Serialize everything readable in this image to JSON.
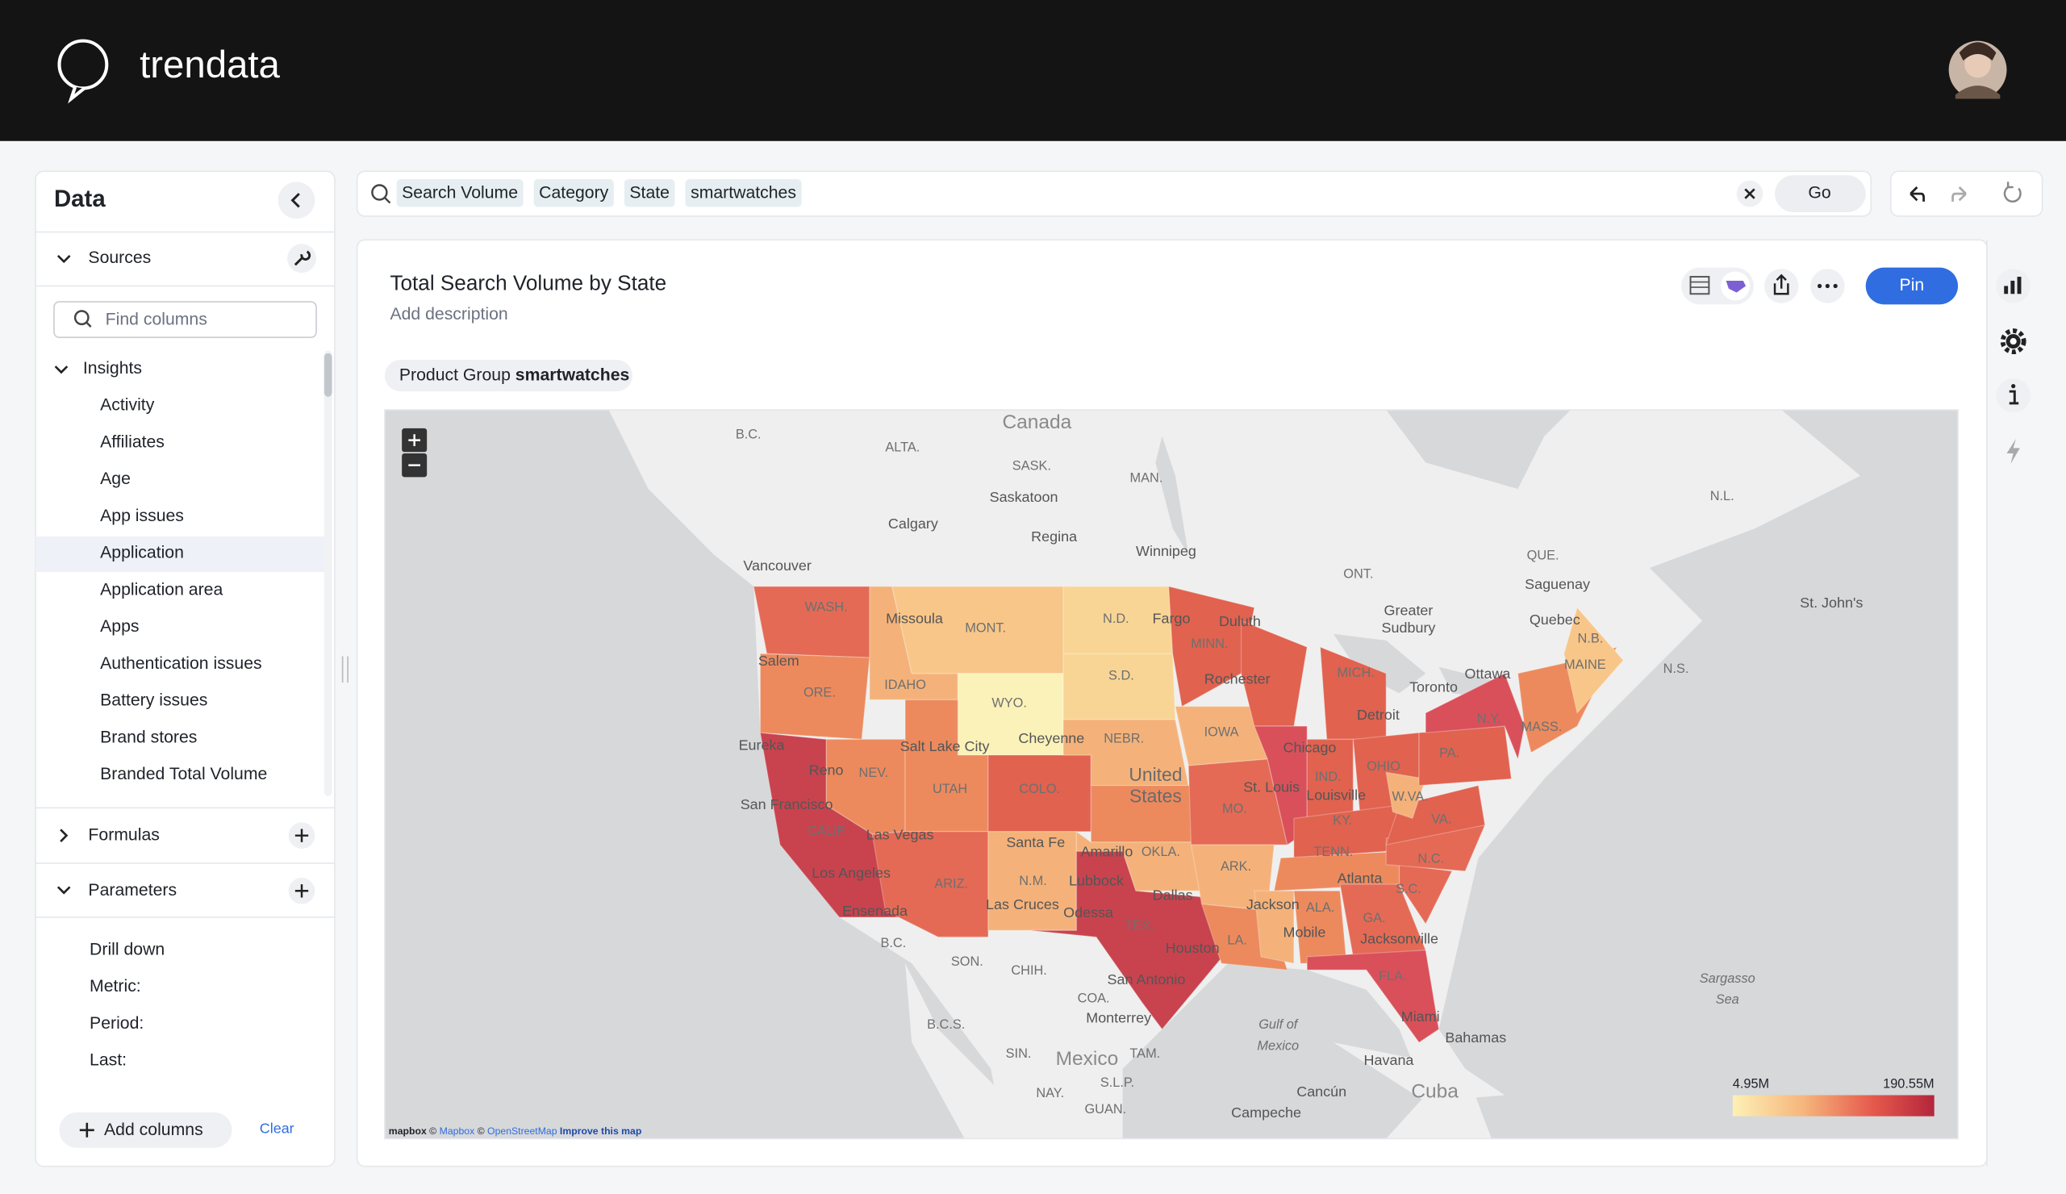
{
  "header": {
    "brand": "trendata"
  },
  "sidebar": {
    "title": "Data",
    "sources": "Sources",
    "search_placeholder": "Find columns",
    "insights": {
      "label": "Insights",
      "items": [
        "Activity",
        "Affiliates",
        "Age",
        "App issues",
        "Application",
        "Application area",
        "Apps",
        "Authentication issues",
        "Battery issues",
        "Brand stores",
        "Branded Total Volume"
      ]
    },
    "formulas": "Formulas",
    "parameters": {
      "label": "Parameters",
      "items": [
        "Drill down",
        "Metric:",
        "Period:",
        "Last:"
      ]
    },
    "add_columns": "Add columns",
    "clear": "Clear"
  },
  "search": {
    "tokens": [
      "Search Volume",
      "Category",
      "State",
      "smartwatches"
    ],
    "go": "Go"
  },
  "chart": {
    "title": "Total Search Volume by State",
    "description": "Add description",
    "filter": {
      "label": "Product Group",
      "value": "smartwatches"
    },
    "pin": "Pin",
    "map": {
      "labels": [
        "Canada",
        "B.C.",
        "ALTA.",
        "SASK.",
        "MAN.",
        "Saskatoon",
        "Calgary",
        "Regina",
        "Winnipeg",
        "Vancouver",
        "ONT.",
        "QUE.",
        "Saguenay",
        "N.L.",
        "Quebec",
        "St. John's",
        "N.B.",
        "N.S.",
        "Greater",
        "Sudbury",
        "Toronto",
        "Ottawa",
        "WASH.",
        "Missoula",
        "MONT.",
        "N.D.",
        "Fargo",
        "Duluth",
        "MINN.",
        "Salem",
        "IDAHO",
        "S.D.",
        "Rochester",
        "MICH.",
        "ORE.",
        "WYO.",
        "IOWA",
        "Detroit",
        "N.Y.",
        "MASS.",
        "MAINE",
        "Eureka",
        "Salt Lake City",
        "Cheyenne",
        "NEBR.",
        "Chicago",
        "OHIO",
        "PA.",
        "United",
        "States",
        "Reno",
        "NEV.",
        "UTAH",
        "COLO.",
        "IND.",
        "St. Louis",
        "Louisville",
        "W.VA.",
        "San Francisco",
        "MO.",
        "KY.",
        "VA.",
        "CALIF.",
        "Las Vegas",
        "Santa Fe",
        "Amarillo",
        "OKLA.",
        "TENN.",
        "N.C.",
        "Los Angeles",
        "N.M.",
        "Lubbock",
        "ARK.",
        "Atlanta",
        "S.C.",
        "ARIZ.",
        "Dallas",
        "Las Cruces",
        "Odessa",
        "Jackson",
        "ALA.",
        "Ensenada",
        "TEX.",
        "Mobile",
        "GA.",
        "B.C.",
        "Houston",
        "LA.",
        "Jacksonville",
        "SON.",
        "CHIH.",
        "San Antonio",
        "FLA.",
        "COA.",
        "Sargasso",
        "Sea",
        "Miami",
        "Monterrey",
        "Gulf of",
        "Mexico",
        "Bahamas",
        "B.C.S.",
        "Mexico",
        "TAM.",
        "SIN.",
        "Havana",
        "NAY.",
        "S.L.P.",
        "Cancún",
        "Cuba",
        "GUAN.",
        "Campeche"
      ],
      "attribution": {
        "logo": "mapbox",
        "parts": [
          "©",
          "Mapbox",
          "©",
          "OpenStreetMap",
          "Improve this map"
        ]
      },
      "legend": {
        "min": "4.95M",
        "max": "190.55M"
      }
    }
  }
}
